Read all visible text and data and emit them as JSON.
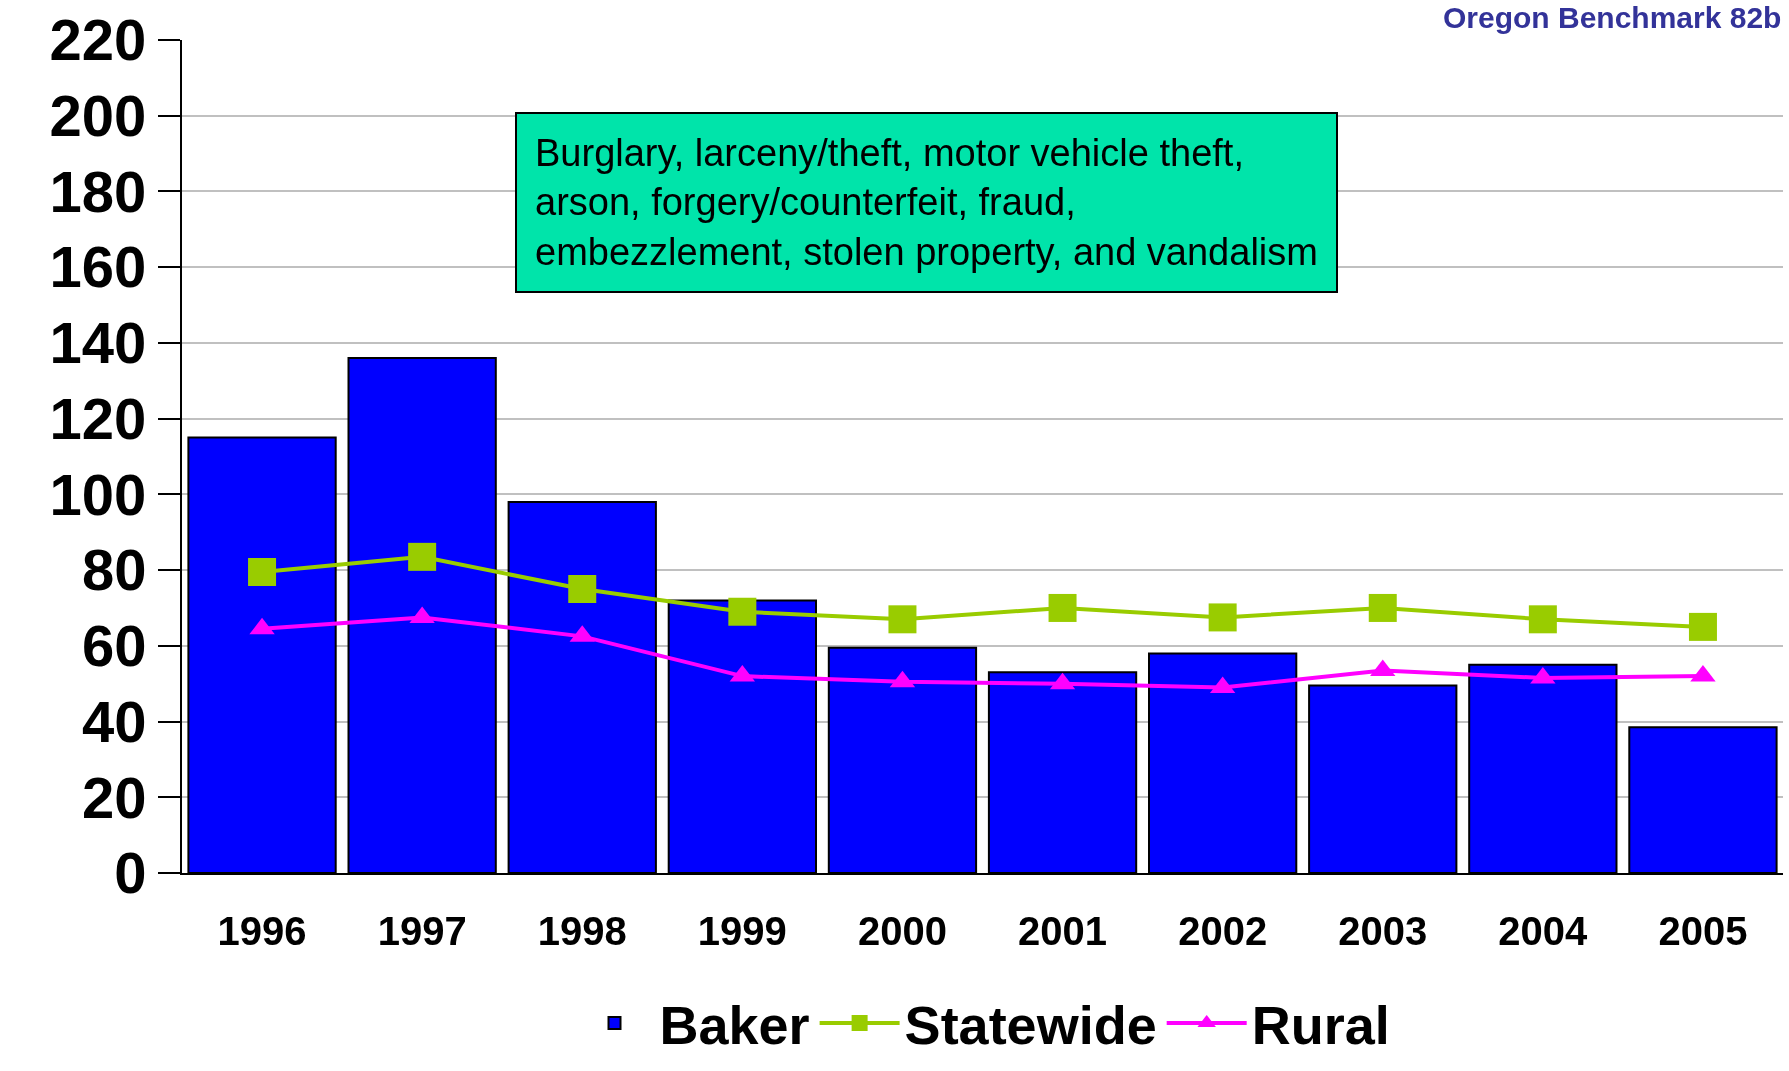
{
  "chart_data": {
    "type": "bar",
    "categories": [
      "1996",
      "1997",
      "1998",
      "1999",
      "2000",
      "2001",
      "2002",
      "2003",
      "2004",
      "2005"
    ],
    "series": [
      {
        "name": "Baker",
        "color": "#0000ff",
        "values": [
          115,
          136,
          98,
          72,
          59.5,
          53,
          58,
          49.5,
          55,
          38.5
        ]
      },
      {
        "name": "Statewide",
        "type": "line",
        "color": "#99cc00",
        "marker": "square",
        "values": [
          79.5,
          83.5,
          75,
          69,
          67,
          70,
          67.5,
          70,
          67,
          65
        ]
      },
      {
        "name": "Rural",
        "type": "line",
        "color": "#ff00ff",
        "marker": "triangle",
        "values": [
          64.5,
          67.5,
          62.5,
          52,
          50.5,
          50,
          49,
          53.5,
          51.5,
          52
        ]
      }
    ],
    "ylim": [
      0,
      220
    ],
    "yticks": [
      0,
      20,
      40,
      60,
      80,
      100,
      120,
      140,
      160,
      180,
      200,
      220
    ],
    "grid": "y",
    "legend": "bottom",
    "annotations": [
      "Oregon Benchmark 82b",
      "Burglary, larceny/theft, motor vehicle theft,\narson, forgery/counterfeit, fraud,\nembezzlement, stolen property, and vandalism"
    ]
  }
}
